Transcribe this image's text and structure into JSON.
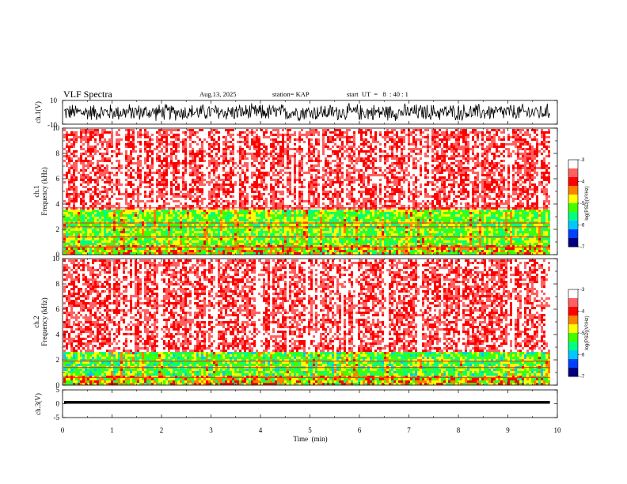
{
  "header": {
    "title": "VLF Spectra",
    "date": "Aug.13, 2025",
    "station": "station= KAP",
    "start_ut": "start  UT  =   8  : 40 : 1"
  },
  "chart_data": [
    {
      "type": "line",
      "panel": "ch1-waveform",
      "ylabel": "ch.1(V)",
      "ylim": [
        -10,
        10
      ],
      "yticks_labeled": [
        "10",
        "-10"
      ],
      "xlim": [
        0,
        10
      ],
      "data_end_min": 9.85,
      "series": [
        {
          "color": "#000000",
          "baseline_v": 0,
          "amplitude_v": 8
        }
      ]
    },
    {
      "type": "heatmap",
      "panel": "ch1-spectrogram",
      "ylabel": "ch.1\nFrequency  (kHz)",
      "ylim": [
        0,
        10
      ],
      "yticks": [
        "0",
        "2",
        "4",
        "6",
        "8",
        "10"
      ],
      "xlim": [
        0,
        10
      ],
      "data_end_min": 9.85,
      "colorbar": {
        "label": "log(PSD)(V²/Hz)",
        "range": [
          -7,
          -3
        ],
        "ticks": [
          "-3",
          "-4",
          "-5",
          "-6",
          "-7"
        ],
        "colors": [
          "#000080",
          "#0040ff",
          "#00c8ff",
          "#00ff80",
          "#40ff00",
          "#ffff00",
          "#ff8000",
          "#ff0000",
          "#ff6060",
          "#ffffff"
        ]
      },
      "bands": [
        {
          "f_min_khz": 0.0,
          "f_max_khz": 0.9,
          "level": "mixed"
        },
        {
          "f_min_khz": 0.9,
          "f_max_khz": 3.6,
          "level": -5.2
        },
        {
          "f_min_khz": 3.6,
          "f_max_khz": 10.0,
          "level": -3.6
        }
      ],
      "lines_khz": [
        2.2,
        2.5,
        3.7,
        1.4,
        0.6
      ]
    },
    {
      "type": "heatmap",
      "panel": "ch2-spectrogram",
      "ylabel": "ch.2\nFrequency  (kHz)",
      "ylim": [
        0,
        10
      ],
      "yticks": [
        "0",
        "2",
        "4",
        "6",
        "8",
        "10"
      ],
      "xlim": [
        0,
        10
      ],
      "data_end_min": 9.85,
      "colorbar": {
        "label": "log(PSD)(V²/Hz)",
        "range": [
          -7,
          -3
        ],
        "ticks": [
          "-3",
          "-4",
          "-5",
          "-6",
          "-7"
        ],
        "colors": [
          "#000080",
          "#0040ff",
          "#00c8ff",
          "#00ff80",
          "#40ff00",
          "#ffff00",
          "#ff8000",
          "#ff0000",
          "#ff6060",
          "#ffffff"
        ]
      },
      "bands": [
        {
          "f_min_khz": 0.0,
          "f_max_khz": 0.9,
          "level": "mixed"
        },
        {
          "f_min_khz": 0.9,
          "f_max_khz": 2.8,
          "level": -5.3
        },
        {
          "f_min_khz": 2.8,
          "f_max_khz": 10.0,
          "level": -3.6
        }
      ],
      "lines_khz": [
        1.9,
        1.4,
        0.6
      ]
    },
    {
      "type": "line",
      "panel": "ch3-waveform",
      "ylabel": "ch.3(V)",
      "ylim": [
        -5,
        5
      ],
      "yticks": [
        "5",
        "0",
        "-5"
      ],
      "xlim": [
        0,
        10
      ],
      "data_end_min": 9.85,
      "series": [
        {
          "color": "#000000",
          "baseline_v": 0.5,
          "amplitude_v": 0.5
        }
      ]
    }
  ],
  "x_axis": {
    "label": "Time  (min)",
    "ticks": [
      "0",
      "1",
      "2",
      "3",
      "4",
      "5",
      "6",
      "7",
      "8",
      "9",
      "10"
    ]
  }
}
